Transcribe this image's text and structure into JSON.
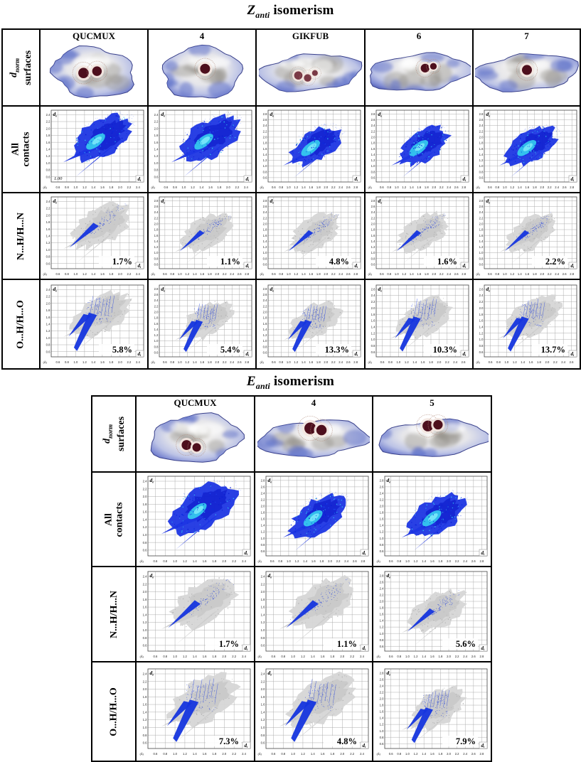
{
  "figure": {
    "axis": {
      "y_label": "d",
      "y_label_sub": "e",
      "x_label": "d",
      "x_label_sub": "i",
      "unit": "(Å)",
      "tick_start": 0.6,
      "tick_step": 0.2
    },
    "colors": {
      "fingerprint_blue": "#1d36e3",
      "fingerprint_dark_blue": "#0a18c8",
      "fingerprint_cyan": "#37d9f0",
      "subset_gray": "#d6d6d6",
      "surface_edge_blue": "#5a68c0",
      "spot_red": "#4d0f1d"
    },
    "tables": [
      {
        "name": "z-anti",
        "title": {
          "letter": "Z",
          "sub": "anti",
          "rest": " isomerism"
        },
        "row_labels": [
          {
            "l1": "d",
            "l1sub": "norm",
            "l2": "surfaces"
          },
          {
            "l1": "All",
            "l1sub": "",
            "l2": "contacts"
          },
          {
            "l1": "N...H/H...N",
            "l1sub": "",
            "l2": ""
          },
          {
            "l1": "O...H/H...O",
            "l1sub": "",
            "l2": ""
          }
        ],
        "columns": [
          {
            "header": "QUCMUX",
            "surface": {
              "shape": "round",
              "faint": false,
              "spots": [
                [
                  0.4,
                  0.52,
                  0.05
                ],
                [
                  0.53,
                  0.49,
                  0.046
                ]
              ]
            },
            "all": {
              "x_max": 2.4,
              "annotation": "1.00"
            },
            "nhn": {
              "x_max": 2.4,
              "percent": "1.7%"
            },
            "oho": {
              "x_max": 2.4,
              "percent": "5.8%"
            }
          },
          {
            "header": "4",
            "surface": {
              "shape": "round",
              "faint": false,
              "spots": [
                [
                  0.53,
                  0.45,
                  0.048
                ]
              ]
            },
            "all": {
              "x_max": 2.4,
              "annotation": ""
            },
            "nhn": {
              "x_max": 2.8,
              "percent": "1.1%"
            },
            "oho": {
              "x_max": 2.8,
              "percent": "5.4%"
            }
          },
          {
            "header": "GIKFUB",
            "surface": {
              "shape": "long",
              "faint": true,
              "spots": [
                [
                  0.38,
                  0.56,
                  0.04
                ],
                [
                  0.47,
                  0.6,
                  0.036
                ],
                [
                  0.54,
                  0.52,
                  0.028
                ]
              ]
            },
            "all": {
              "x_max": 2.8,
              "annotation": ""
            },
            "nhn": {
              "x_max": 2.8,
              "percent": "4.8%"
            },
            "oho": {
              "x_max": 2.8,
              "percent": "13.3%"
            }
          },
          {
            "header": "6",
            "surface": {
              "shape": "long",
              "faint": false,
              "spots": [
                [
                  0.56,
                  0.44,
                  0.042
                ],
                [
                  0.64,
                  0.41,
                  0.032
                ]
              ]
            },
            "all": {
              "x_max": 2.8,
              "annotation": ""
            },
            "nhn": {
              "x_max": 2.8,
              "percent": "1.6%"
            },
            "oho": {
              "x_max": 2.6,
              "percent": "10.3%"
            }
          },
          {
            "header": "7",
            "surface": {
              "shape": "long",
              "faint": false,
              "spots": [
                [
                  0.5,
                  0.47,
                  0.048
                ]
              ]
            },
            "all": {
              "x_max": 2.8,
              "annotation": ""
            },
            "nhn": {
              "x_max": 2.8,
              "percent": "2.2%"
            },
            "oho": {
              "x_max": 2.6,
              "percent": "13.7%"
            }
          }
        ]
      },
      {
        "name": "e-anti",
        "title": {
          "letter": "E",
          "sub": "anti",
          "rest": " isomerism"
        },
        "row_labels": [
          {
            "l1": "d",
            "l1sub": "norm",
            "l2": "surfaces"
          },
          {
            "l1": "All",
            "l1sub": "",
            "l2": "contacts"
          },
          {
            "l1": "N...H/H...N",
            "l1sub": "",
            "l2": ""
          },
          {
            "l1": "O...H/H...O",
            "l1sub": "",
            "l2": ""
          }
        ],
        "columns": [
          {
            "header": "QUCMUX",
            "surface": {
              "shape": "round",
              "faint": false,
              "spots": [
                [
                  0.42,
                  0.62,
                  0.044
                ],
                [
                  0.51,
                  0.66,
                  0.038
                ]
              ]
            },
            "all": {
              "x_max": 2.4,
              "annotation": ""
            },
            "nhn": {
              "x_max": 2.4,
              "percent": "1.7%"
            },
            "oho": {
              "x_max": 2.4,
              "percent": "7.3%"
            }
          },
          {
            "header": "4",
            "surface": {
              "shape": "long",
              "faint": false,
              "spots": [
                [
                  0.47,
                  0.34,
                  0.052
                ],
                [
                  0.57,
                  0.37,
                  0.046
                ]
              ]
            },
            "all": {
              "x_max": 2.8,
              "annotation": ""
            },
            "nhn": {
              "x_max": 2.4,
              "percent": "1.1%"
            },
            "oho": {
              "x_max": 2.4,
              "percent": "4.8%"
            }
          },
          {
            "header": "5",
            "surface": {
              "shape": "long",
              "faint": false,
              "spots": [
                [
                  0.46,
                  0.3,
                  0.048
                ],
                [
                  0.55,
                  0.28,
                  0.042
                ]
              ]
            },
            "all": {
              "x_max": 2.8,
              "annotation": ""
            },
            "nhn": {
              "x_max": 2.8,
              "percent": "5.6%"
            },
            "oho": {
              "x_max": 2.8,
              "percent": "7.9%"
            }
          }
        ]
      }
    ]
  }
}
